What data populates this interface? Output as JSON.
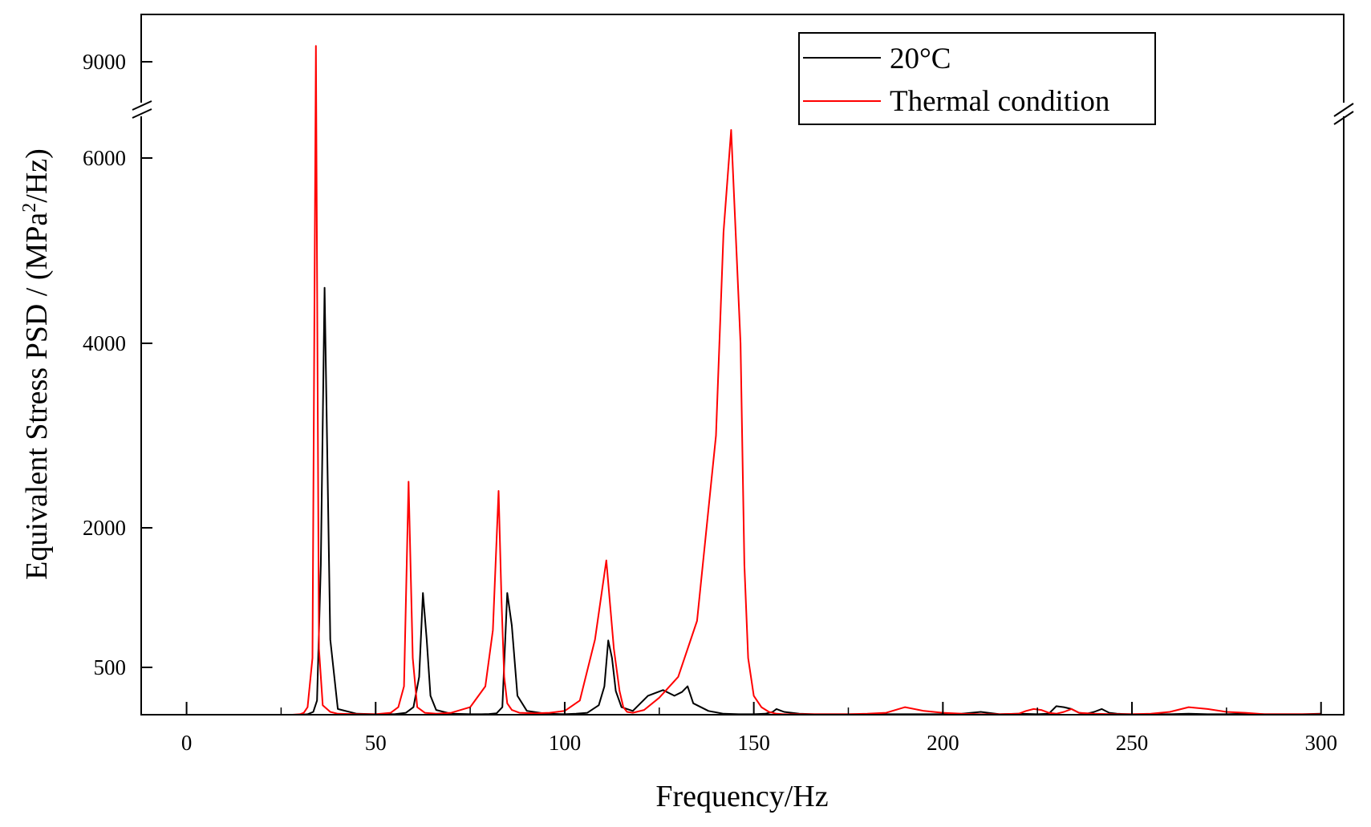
{
  "chart_data": {
    "type": "line",
    "title": "",
    "xlabel": "Frequency/Hz",
    "ylabel_parts": [
      "Equivalent Stress PSD / (MPa",
      "2",
      "/Hz)"
    ],
    "xlim": [
      -12,
      306
    ],
    "x_ticks": [
      0,
      50,
      100,
      150,
      200,
      250,
      300
    ],
    "x_tick_labels": [
      "0",
      "50",
      "100",
      "150",
      "200",
      "250",
      "300"
    ],
    "y_ticks": [
      500,
      2000,
      4000,
      6000,
      9000
    ],
    "y_tick_labels": [
      "500",
      "2000",
      "4000",
      "6000",
      "9000"
    ],
    "y_axis_break": [
      6300,
      8700
    ],
    "grid": false,
    "legend_position": "top-right",
    "series": [
      {
        "name": "20°C",
        "color": "#000000",
        "x": [
          2,
          15,
          25,
          30,
          32,
          33.5,
          34.5,
          35.5,
          36.5,
          38,
          40,
          45,
          50,
          55,
          58,
          60,
          61.5,
          62.5,
          63.5,
          64.5,
          66,
          70,
          75,
          78,
          80,
          82,
          83.5,
          84.8,
          86,
          87.5,
          90,
          95,
          100,
          103,
          106,
          109,
          110.5,
          111.5,
          112.5,
          113.5,
          115,
          118,
          122,
          126,
          129,
          131,
          132.5,
          134,
          138,
          142,
          146,
          150,
          153,
          155,
          156,
          158,
          162,
          166,
          170,
          180,
          190,
          200,
          205,
          210,
          215,
          220,
          225,
          228,
          230,
          232,
          234,
          236,
          238,
          240,
          242,
          244,
          246,
          250,
          255,
          260,
          265,
          270,
          275,
          280,
          285,
          290,
          295,
          300
        ],
        "y": [
          0,
          0,
          0,
          0,
          5,
          30,
          150,
          1600,
          4600,
          800,
          60,
          10,
          5,
          5,
          20,
          80,
          400,
          1300,
          800,
          200,
          50,
          10,
          5,
          5,
          8,
          15,
          80,
          1300,
          950,
          200,
          40,
          10,
          5,
          10,
          20,
          100,
          300,
          790,
          600,
          250,
          80,
          40,
          200,
          260,
          200,
          240,
          300,
          120,
          40,
          10,
          5,
          5,
          10,
          30,
          60,
          30,
          10,
          5,
          5,
          5,
          5,
          5,
          10,
          30,
          5,
          10,
          5,
          10,
          90,
          80,
          60,
          20,
          10,
          30,
          60,
          20,
          10,
          5,
          5,
          5,
          10,
          5,
          5,
          10,
          5,
          5,
          5,
          10
        ]
      },
      {
        "name": "Thermal condition",
        "color": "#ff0000",
        "x": [
          2,
          20,
          26,
          28,
          30,
          31,
          32,
          33.3,
          34.2,
          35,
          36,
          38,
          40,
          45,
          50,
          54,
          56,
          57.5,
          58.7,
          59.8,
          61,
          63,
          66,
          70,
          75,
          79,
          81,
          82.5,
          83.3,
          84,
          84.8,
          86,
          88,
          92,
          96,
          100,
          104,
          108,
          111,
          113,
          114.5,
          115.5,
          116.5,
          118,
          121,
          125,
          130,
          135,
          140,
          142,
          144,
          146.5,
          147.5,
          148.5,
          150,
          152,
          154,
          156,
          158,
          160,
          165,
          170,
          175,
          180,
          185,
          190,
          195,
          200,
          205,
          210,
          215,
          220,
          222,
          224,
          226,
          228,
          230,
          232,
          234,
          236,
          240,
          245,
          250,
          255,
          260,
          265,
          270,
          275,
          280,
          285,
          290,
          295,
          300
        ],
        "y": [
          0,
          0,
          0,
          0,
          5,
          20,
          80,
          600,
          9100,
          700,
          100,
          30,
          10,
          5,
          5,
          20,
          80,
          300,
          2500,
          600,
          80,
          20,
          10,
          20,
          80,
          300,
          900,
          2400,
          1200,
          400,
          120,
          50,
          20,
          15,
          20,
          40,
          150,
          800,
          1650,
          700,
          250,
          80,
          30,
          20,
          50,
          180,
          400,
          1000,
          3000,
          5200,
          6300,
          4000,
          1600,
          600,
          200,
          80,
          30,
          10,
          5,
          5,
          5,
          5,
          5,
          10,
          20,
          80,
          40,
          20,
          10,
          5,
          5,
          10,
          40,
          60,
          50,
          20,
          10,
          30,
          60,
          20,
          10,
          5,
          5,
          10,
          30,
          80,
          60,
          30,
          20,
          5,
          5,
          5,
          5
        ]
      }
    ]
  }
}
